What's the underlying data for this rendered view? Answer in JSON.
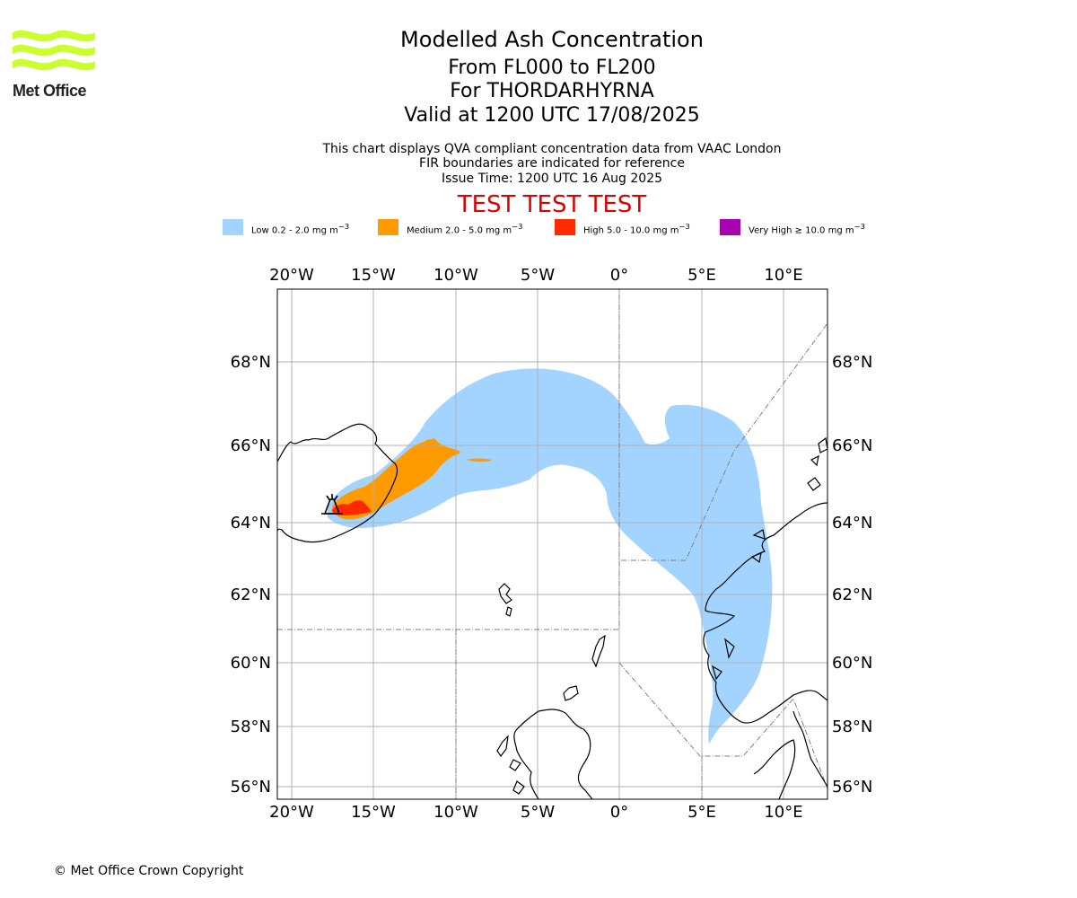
{
  "brand": {
    "name": "Met Office",
    "colors": {
      "logo": "#c8ff2e",
      "text": "#222222"
    }
  },
  "title": {
    "main": "Modelled Ash Concentration",
    "levels": "From FL000 to FL200",
    "volcano": "For THORDARHYRNA",
    "valid": "Valid at 1200 UTC 17/08/2025"
  },
  "subtitle": {
    "line1": "This chart displays QVA compliant concentration data from VAAC London",
    "line2": "FIR boundaries are indicated for reference",
    "line3": "Issue Time: 1200 UTC 16 Aug 2025"
  },
  "test_banner": "TEST TEST TEST",
  "legend": [
    {
      "pre": "Low 0.2 - 2.0 mg m",
      "sup": "−3",
      "color": "#a3d4ff"
    },
    {
      "pre": "Medium 2.0 - 5.0 mg m",
      "sup": "−3",
      "color": "#ff9a00"
    },
    {
      "pre": "High 5.0 - 10.0 mg m",
      "sup": "−3",
      "color": "#ff2a00"
    },
    {
      "pre": "Very High  ≥  10.0 mg m",
      "sup": "−3",
      "color": "#a800b0"
    }
  ],
  "map": {
    "lon_ticks": [
      "20°W",
      "15°W",
      "10°W",
      "5°W",
      "0°",
      "5°E",
      "10°E"
    ],
    "lat_ticks": [
      "68°N",
      "66°N",
      "64°N",
      "62°N",
      "60°N",
      "58°N",
      "56°N"
    ],
    "source_marker": "volcano-icon"
  },
  "copyright": "© Met Office Crown Copyright"
}
